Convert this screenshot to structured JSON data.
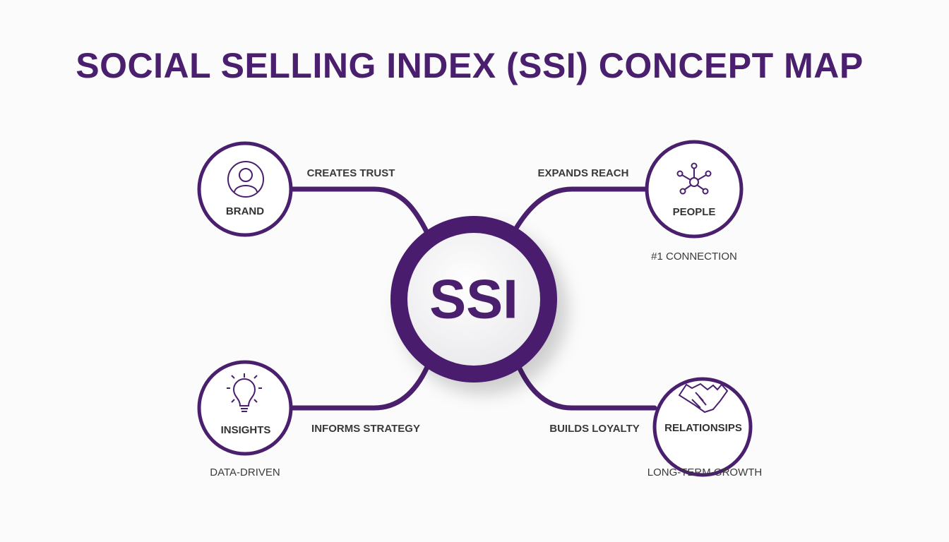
{
  "title": "SOCIAL SELLING INDEX (SSI) CONCEPT MAP",
  "center": {
    "label": "SSI"
  },
  "accent_color": "#4a1f6e",
  "nodes": [
    {
      "label": "BRAND",
      "icon": "user-icon",
      "edge_label": "CREATES TRUST",
      "caption": ""
    },
    {
      "label": "PEOPLE",
      "icon": "network-icon",
      "edge_label": "EXPANDS REACH",
      "caption": "#1 CONNECTION"
    },
    {
      "label": "INSIGHTS",
      "icon": "lightbulb-icon",
      "edge_label": "INFORMS STRATEGY",
      "caption": "DATA-DRIVEN"
    },
    {
      "label": "RELATIONSIPS",
      "icon": "handshake-icon",
      "edge_label": "BUILDS LOYALTY",
      "caption": "LONG-TERM GROWTH"
    }
  ]
}
